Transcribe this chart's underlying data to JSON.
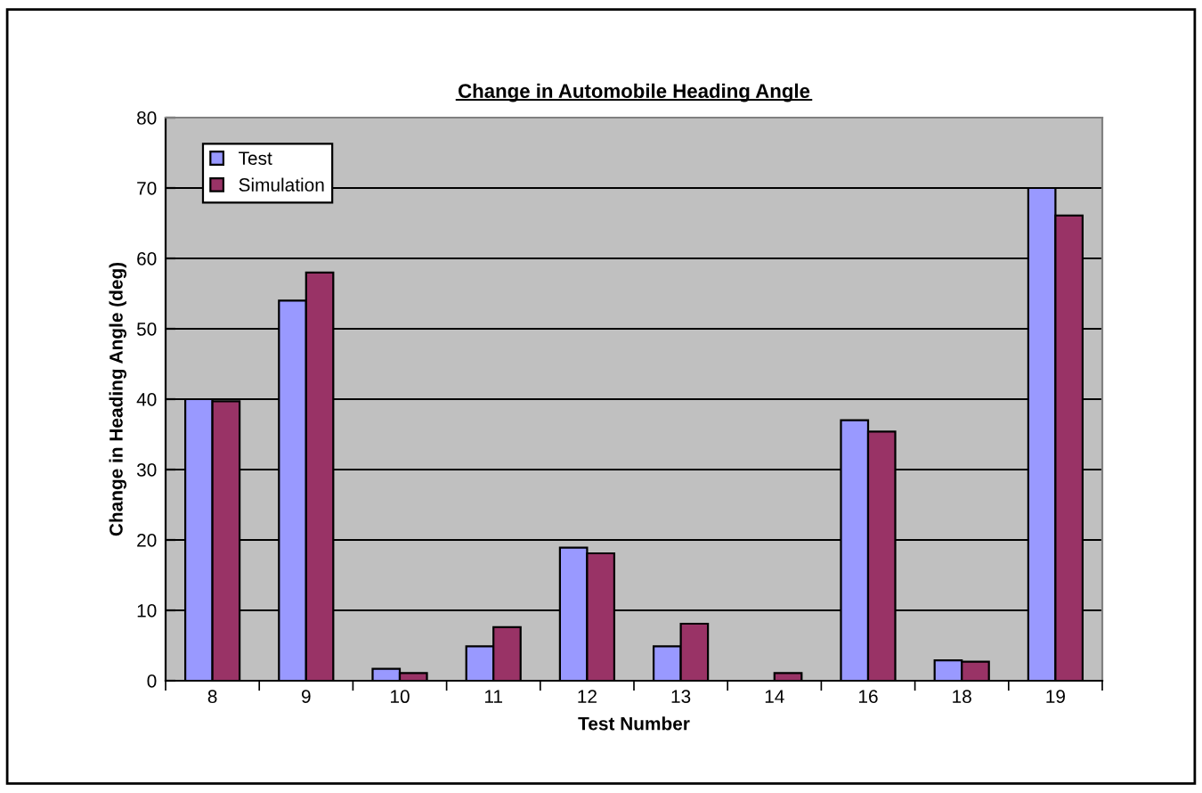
{
  "chart_data": {
    "type": "bar",
    "title": "Change in Automobile Heading Angle",
    "xlabel": "Test Number",
    "ylabel": "Change in Heading Angle (deg)",
    "categories": [
      "8",
      "9",
      "10",
      "11",
      "12",
      "13",
      "14",
      "16",
      "18",
      "19"
    ],
    "series": [
      {
        "name": "Test",
        "color": "#9999ff",
        "values": [
          40,
          54,
          1.7,
          4.9,
          18.9,
          4.9,
          0,
          37,
          2.9,
          70
        ]
      },
      {
        "name": "Simulation",
        "color": "#993366",
        "values": [
          39.7,
          58,
          1.1,
          7.6,
          18.1,
          8.1,
          1.1,
          35.4,
          2.7,
          66.1
        ]
      }
    ],
    "ylim": [
      0,
      80
    ],
    "yticks": [
      0,
      10,
      20,
      30,
      40,
      50,
      60,
      70,
      80
    ],
    "grid": "y",
    "legend": "top left"
  }
}
